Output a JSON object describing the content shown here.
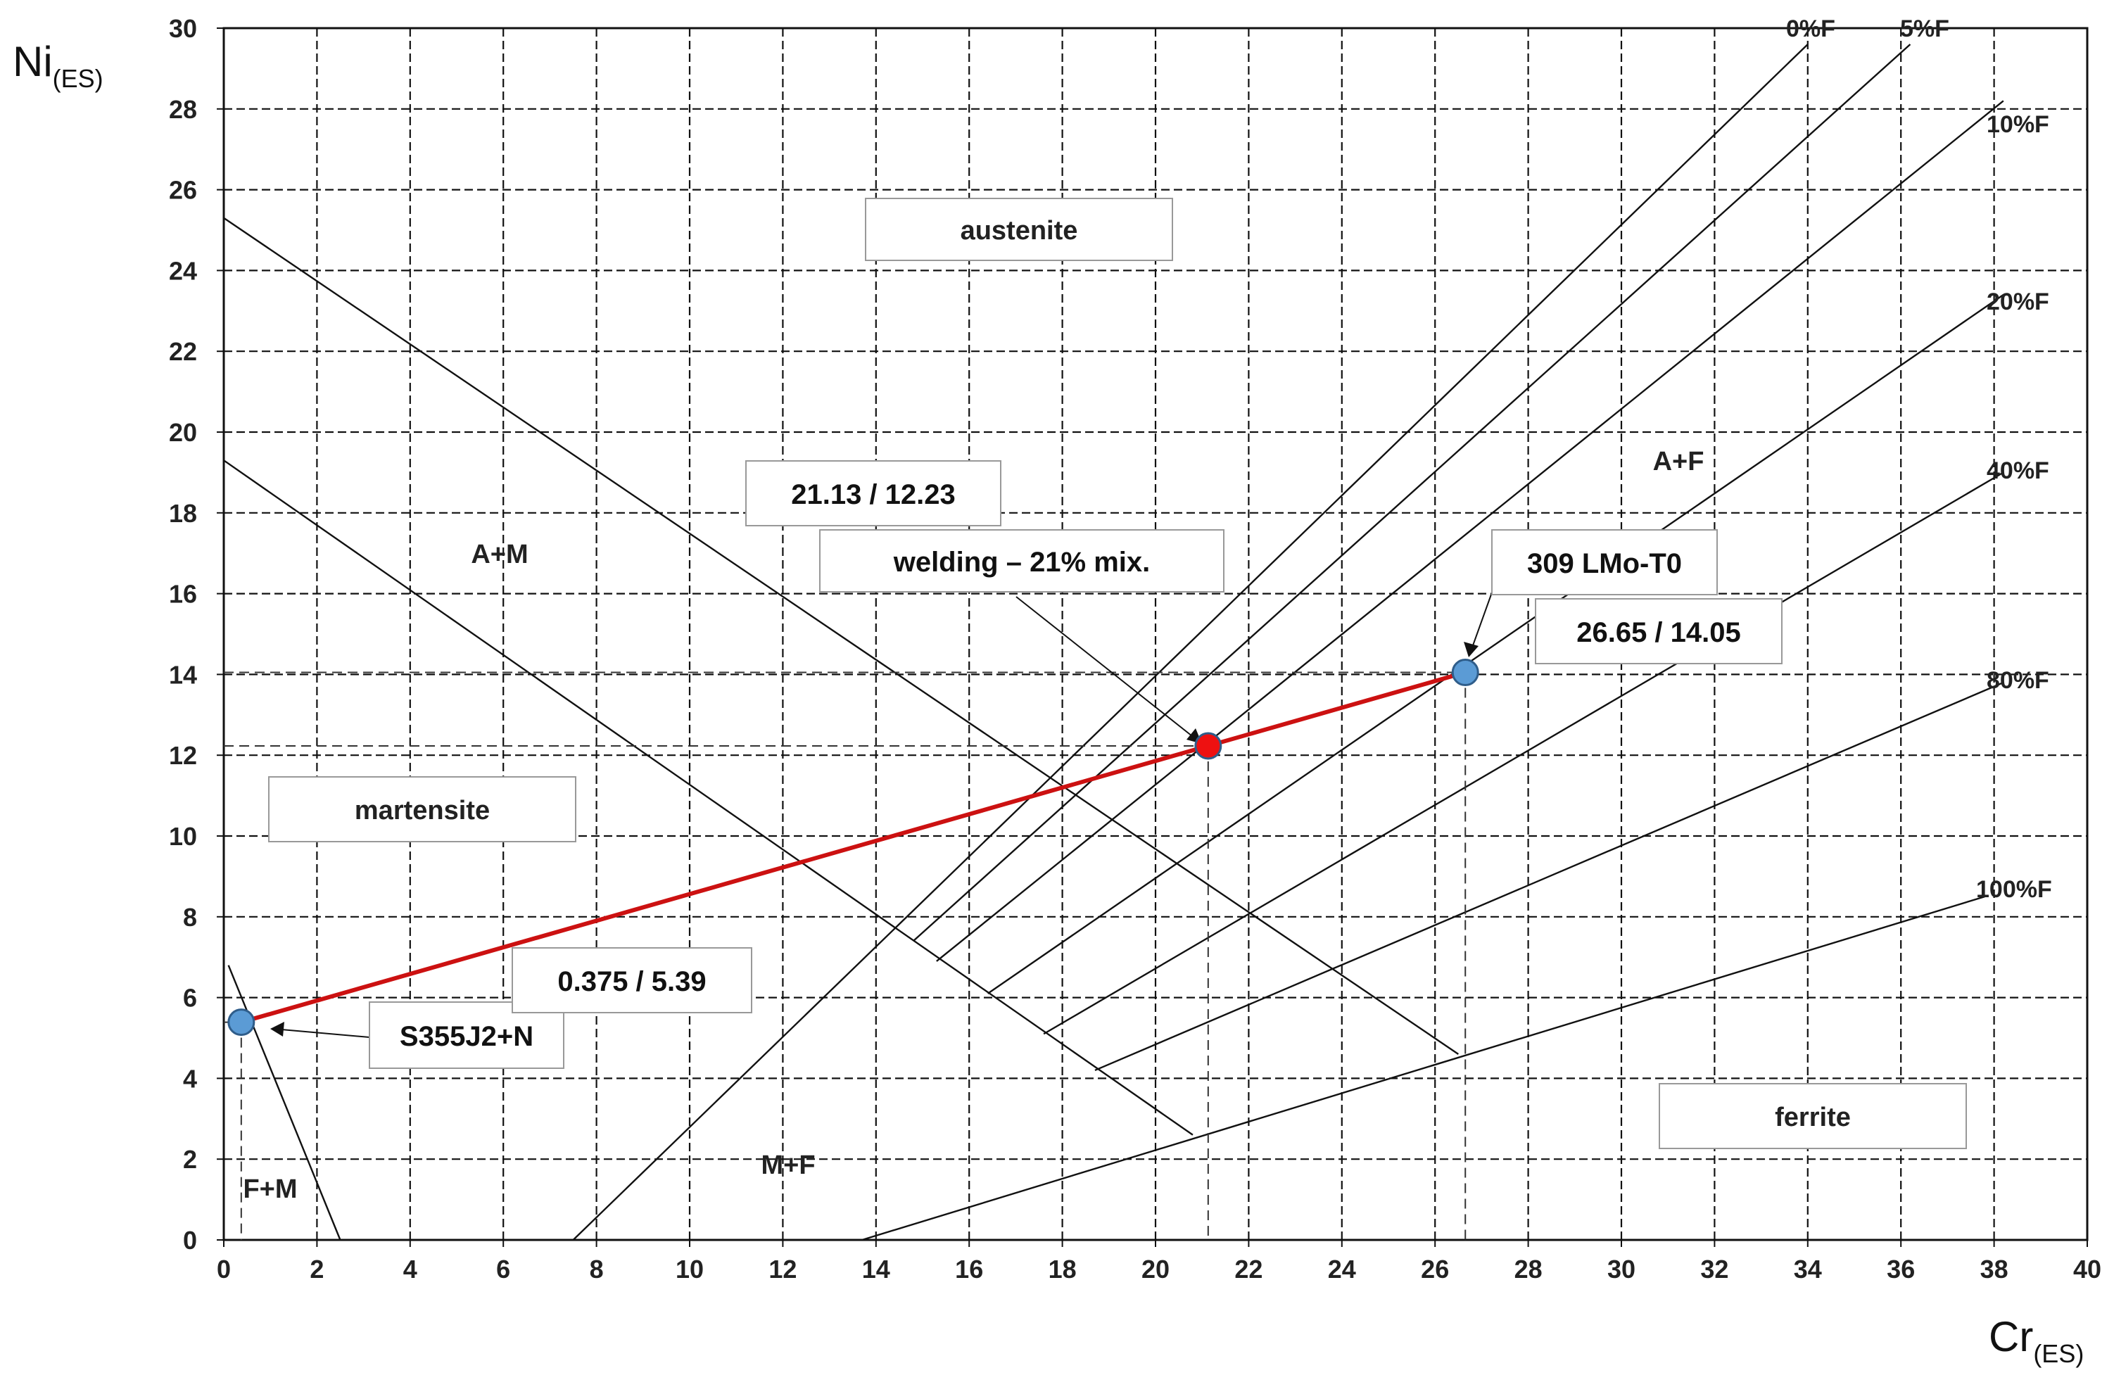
{
  "chart_data": {
    "type": "scatter",
    "title": "",
    "xlabel": "Cr",
    "xlabel_sub": "(ES)",
    "ylabel": "Ni",
    "ylabel_sub": "(ES)",
    "xlim": [
      0,
      40
    ],
    "ylim": [
      0,
      30
    ],
    "x_ticks": [
      0,
      2,
      4,
      6,
      8,
      10,
      12,
      14,
      16,
      18,
      20,
      22,
      24,
      26,
      28,
      30,
      32,
      34,
      36,
      38,
      40
    ],
    "y_ticks": [
      0,
      2,
      4,
      6,
      8,
      10,
      12,
      14,
      16,
      18,
      20,
      22,
      24,
      26,
      28,
      30
    ],
    "grid": true,
    "phase_boundaries": [
      {
        "id": "am-upper",
        "points": [
          [
            0,
            25.3
          ],
          [
            26.5,
            4.6
          ]
        ]
      },
      {
        "id": "am-lower",
        "points": [
          [
            0,
            19.3
          ],
          [
            20.8,
            2.6
          ]
        ]
      },
      {
        "id": "fm",
        "points": [
          [
            0.1,
            6.8
          ],
          [
            2.5,
            0
          ]
        ]
      },
      {
        "id": "ferrite-100",
        "points": [
          [
            13.7,
            0
          ],
          [
            37.8,
            8.5
          ]
        ]
      },
      {
        "id": "iso-0F",
        "points": [
          [
            7.5,
            0
          ],
          [
            34,
            29.6
          ]
        ]
      },
      {
        "id": "iso-5F",
        "points": [
          [
            14.8,
            7.4
          ],
          [
            36.2,
            29.6
          ]
        ]
      },
      {
        "id": "iso-10F",
        "points": [
          [
            15.3,
            6.9
          ],
          [
            38.2,
            28.2
          ]
        ]
      },
      {
        "id": "iso-20F",
        "points": [
          [
            16.4,
            6.1
          ],
          [
            38.2,
            23.4
          ]
        ]
      },
      {
        "id": "iso-40F",
        "points": [
          [
            17.6,
            5.1
          ],
          [
            38.2,
            19
          ]
        ]
      },
      {
        "id": "iso-80F",
        "points": [
          [
            18.7,
            4.2
          ],
          [
            38.2,
            13.8
          ]
        ]
      }
    ],
    "isoline_labels": [
      "0%F",
      "5%F",
      "10%F",
      "20%F",
      "40%F",
      "80%F",
      "100%F"
    ],
    "regions": [
      "austenite",
      "A+M",
      "A+F",
      "martensite",
      "F+M",
      "M+F",
      "ferrite"
    ],
    "dilution_line": {
      "color": "#cc1111",
      "points": [
        [
          0.375,
          5.39
        ],
        [
          26.65,
          14.05
        ]
      ]
    },
    "points": [
      {
        "label": "S355J2+N",
        "value_label": "0.375 / 5.39",
        "x": 0.375,
        "y": 5.39,
        "color": "#5b9bd5"
      },
      {
        "label": "welding – 21% mix.",
        "value_label": "21.13 / 12.23",
        "x": 21.13,
        "y": 12.23,
        "color": "#ee1111"
      },
      {
        "label": "309 LMo-T0",
        "value_label": "26.65 / 14.05",
        "x": 26.65,
        "y": 14.05,
        "color": "#5b9bd5"
      }
    ]
  }
}
